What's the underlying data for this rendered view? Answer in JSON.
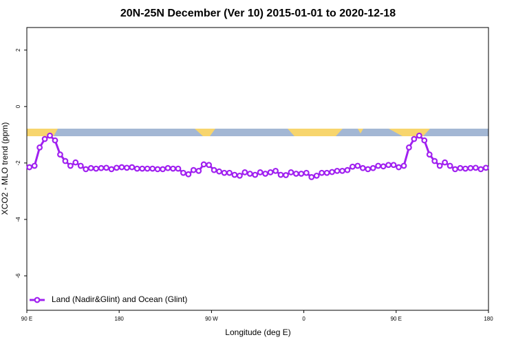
{
  "chart_data": {
    "type": "line",
    "title": "20N-25N December (Ver 10)   2015-01-01 to 2020-12-18",
    "x_label": "Longitude (deg E)",
    "y_label": "XCO2 - MLO trend (ppm)",
    "x": [
      92.5,
      97.5,
      102.5,
      107.5,
      112.5,
      117.5,
      122.5,
      127.5,
      132.5,
      137.5,
      142.5,
      147.5,
      152.5,
      157.5,
      162.5,
      167.5,
      172.5,
      177.5,
      182.5,
      187.5,
      192.5,
      197.5,
      202.5,
      207.5,
      212.5,
      217.5,
      222.5,
      227.5,
      232.5,
      237.5,
      242.5,
      247.5,
      252.5,
      257.5,
      262.5,
      267.5,
      272.5,
      277.5,
      282.5,
      287.5,
      292.5,
      297.5,
      302.5,
      307.5,
      312.5,
      317.5,
      322.5,
      327.5,
      332.5,
      337.5,
      342.5,
      347.5,
      352.5,
      357.5,
      362.5,
      367.5,
      372.5,
      377.5,
      382.5,
      387.5,
      392.5,
      397.5,
      402.5,
      407.5,
      412.5,
      417.5,
      422.5,
      427.5,
      432.5,
      437.5,
      442.5,
      447.5,
      452.5,
      457.5,
      462.5,
      467.5,
      472.5,
      477.5,
      482.5,
      487.5,
      492.5,
      497.5,
      502.5,
      507.5,
      512.5,
      517.5,
      522.5,
      527.5,
      532.5,
      537.5
    ],
    "series": [
      {
        "name": "Land (Nadir&Glint) and Ocean (Glint)",
        "color": "#a020f0",
        "values": [
          -2.15,
          -2.1,
          -1.45,
          -1.15,
          -1.03,
          -1.2,
          -1.7,
          -1.93,
          -2.1,
          -1.98,
          -2.1,
          -2.22,
          -2.18,
          -2.2,
          -2.18,
          -2.17,
          -2.22,
          -2.17,
          -2.15,
          -2.17,
          -2.15,
          -2.2,
          -2.2,
          -2.2,
          -2.2,
          -2.22,
          -2.22,
          -2.18,
          -2.2,
          -2.2,
          -2.35,
          -2.4,
          -2.25,
          -2.28,
          -2.05,
          -2.07,
          -2.25,
          -2.3,
          -2.35,
          -2.35,
          -2.42,
          -2.45,
          -2.33,
          -2.38,
          -2.42,
          -2.33,
          -2.38,
          -2.33,
          -2.28,
          -2.42,
          -2.43,
          -2.33,
          -2.38,
          -2.38,
          -2.35,
          -2.5,
          -2.45,
          -2.35,
          -2.35,
          -2.32,
          -2.28,
          -2.28,
          -2.25,
          -2.13,
          -2.1,
          -2.18,
          -2.22,
          -2.18,
          -2.1,
          -2.12,
          -2.07,
          -2.07,
          -2.15,
          -2.1,
          -1.45,
          -1.15,
          -1.03,
          -1.2,
          -1.7,
          -1.93,
          -2.1,
          -1.98,
          -2.1,
          -2.22,
          -2.18,
          -2.2,
          -2.18,
          -2.17,
          -2.22,
          -2.17
        ]
      }
    ],
    "xlim": [
      90,
      540
    ],
    "xticks": [
      {
        "value": 90,
        "label": "90 E"
      },
      180,
      {
        "value": 270,
        "label": "90 W"
      },
      {
        "value": 360,
        "label": "0"
      },
      {
        "value": 450,
        "label": "90 E"
      },
      {
        "value": 540,
        "label": "180"
      }
    ],
    "ylim": [
      -7.22,
      2.8
    ],
    "yticks": [
      2,
      0,
      -2,
      -4,
      -6
    ],
    "legend": "bottom-left"
  }
}
